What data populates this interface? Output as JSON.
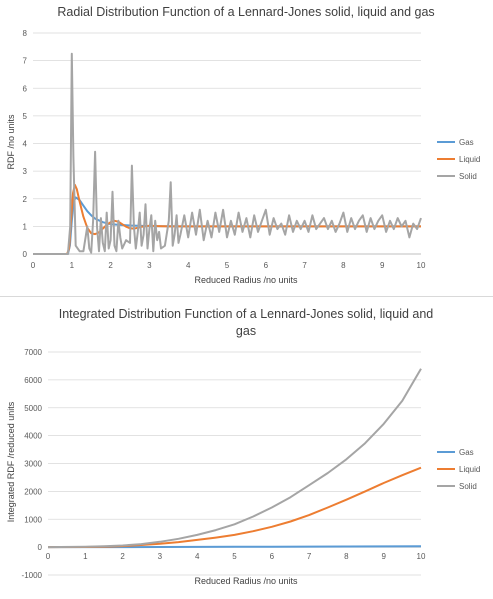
{
  "chart_data": [
    {
      "type": "line",
      "title": "Radial Distribution Function of a Lennard-Jones solid, liquid and gas",
      "xlabel": "Reduced Radius /no units",
      "ylabel": "RDF /no units",
      "xlim": [
        0,
        10
      ],
      "ylim": [
        0,
        8
      ],
      "xticks": [
        0,
        1,
        2,
        3,
        4,
        5,
        6,
        7,
        8,
        9,
        10
      ],
      "yticks": [
        0,
        1,
        2,
        3,
        4,
        5,
        6,
        7,
        8
      ],
      "grid": "horizontal",
      "legend_position": "right",
      "series": [
        {
          "name": "Gas",
          "color": "#5b9bd5",
          "x": [
            0,
            0.9,
            0.95,
            1.0,
            1.05,
            1.1,
            1.2,
            1.3,
            1.4,
            1.5,
            1.6,
            1.8,
            2.0,
            2.5,
            3.0,
            4.0,
            5.0,
            6.0,
            7.0,
            8.0,
            9.0,
            10.0
          ],
          "y": [
            0,
            0,
            0.3,
            1.2,
            1.9,
            2.05,
            1.95,
            1.75,
            1.55,
            1.4,
            1.28,
            1.15,
            1.08,
            1.03,
            1.01,
            1.0,
            1.0,
            1.0,
            1.0,
            1.0,
            1.0,
            1.0
          ]
        },
        {
          "name": "Liquid",
          "color": "#ed7d31",
          "x": [
            0,
            0.88,
            0.93,
            0.98,
            1.03,
            1.08,
            1.13,
            1.2,
            1.3,
            1.4,
            1.5,
            1.6,
            1.7,
            1.8,
            1.9,
            2.0,
            2.1,
            2.2,
            2.3,
            2.4,
            2.5,
            2.6,
            2.7,
            2.8,
            3.0,
            3.2,
            3.5,
            4.0,
            5.0,
            6.0,
            7.0,
            8.0,
            9.0,
            10.0
          ],
          "y": [
            0,
            0,
            0.2,
            1.2,
            2.2,
            2.5,
            2.35,
            1.9,
            1.35,
            0.95,
            0.75,
            0.72,
            0.78,
            0.92,
            1.05,
            1.15,
            1.2,
            1.17,
            1.08,
            0.99,
            0.93,
            0.92,
            0.95,
            0.99,
            1.02,
            1.01,
            1.0,
            1.0,
            1.0,
            1.0,
            1.0,
            1.0,
            1.0,
            1.0
          ]
        },
        {
          "name": "Solid",
          "color": "#a5a5a5",
          "x": [
            0,
            0.9,
            0.96,
            1.0,
            1.04,
            1.1,
            1.2,
            1.3,
            1.4,
            1.45,
            1.5,
            1.55,
            1.6,
            1.65,
            1.7,
            1.75,
            1.8,
            1.85,
            1.9,
            1.95,
            2.0,
            2.05,
            2.1,
            2.15,
            2.2,
            2.25,
            2.3,
            2.4,
            2.5,
            2.55,
            2.6,
            2.65,
            2.7,
            2.75,
            2.8,
            2.85,
            2.9,
            2.95,
            3.0,
            3.05,
            3.1,
            3.15,
            3.2,
            3.25,
            3.3,
            3.4,
            3.5,
            3.55,
            3.6,
            3.65,
            3.7,
            3.75,
            3.8,
            3.9,
            4.0,
            4.1,
            4.2,
            4.3,
            4.4,
            4.5,
            4.6,
            4.7,
            4.8,
            4.9,
            5.0,
            5.1,
            5.2,
            5.3,
            5.4,
            5.5,
            5.6,
            5.7,
            5.8,
            5.9,
            6.0,
            6.1,
            6.2,
            6.3,
            6.4,
            6.5,
            6.6,
            6.7,
            6.8,
            6.9,
            7.0,
            7.1,
            7.2,
            7.3,
            7.4,
            7.5,
            7.6,
            7.7,
            7.8,
            7.9,
            8.0,
            8.1,
            8.2,
            8.3,
            8.4,
            8.5,
            8.6,
            8.7,
            8.8,
            8.9,
            9.0,
            9.1,
            9.2,
            9.3,
            9.4,
            9.5,
            9.6,
            9.7,
            9.8,
            9.9,
            10.0
          ],
          "y": [
            0,
            0,
            1.0,
            7.25,
            3.5,
            0.3,
            0.1,
            0.1,
            1.0,
            0.2,
            0.05,
            1.2,
            3.7,
            1.0,
            0.1,
            1.3,
            0.4,
            0.1,
            1.5,
            0.2,
            0.5,
            2.25,
            0.3,
            0.1,
            1.2,
            0.6,
            0.2,
            0.5,
            0.4,
            3.2,
            1.0,
            0.2,
            0.8,
            1.5,
            0.3,
            0.7,
            1.8,
            0.2,
            0.9,
            1.4,
            0.1,
            1.2,
            0.5,
            0.8,
            0.2,
            0.3,
            1.2,
            2.6,
            0.3,
            0.7,
            1.4,
            0.4,
            0.7,
            1.4,
            0.6,
            1.5,
            0.7,
            1.6,
            0.5,
            1.2,
            0.6,
            1.5,
            0.8,
            1.6,
            0.6,
            1.2,
            0.7,
            1.5,
            0.8,
            1.3,
            0.6,
            1.4,
            0.8,
            1.2,
            1.6,
            0.7,
            1.3,
            0.9,
            1.1,
            0.7,
            1.4,
            0.8,
            1.2,
            0.9,
            1.2,
            0.8,
            1.4,
            0.9,
            1.1,
            1.3,
            0.9,
            1.2,
            0.8,
            1.1,
            1.5,
            0.8,
            1.3,
            0.9,
            1.2,
            1.4,
            0.8,
            1.3,
            0.9,
            1.2,
            1.4,
            0.8,
            1.2,
            0.9,
            1.3,
            1.0,
            1.2,
            0.6,
            1.1,
            0.9,
            1.3
          ]
        }
      ]
    },
    {
      "type": "line",
      "title": "Integrated Distribution Function of a Lennard-Jones solid, liquid and gas",
      "xlabel": "Reduced Radius /no units",
      "ylabel": "Integrated RDF /reduced units",
      "xlim": [
        0,
        10
      ],
      "ylim": [
        -1000,
        7000
      ],
      "xticks": [
        0,
        1,
        2,
        3,
        4,
        5,
        6,
        7,
        8,
        9,
        10
      ],
      "yticks": [
        -1000,
        0,
        1000,
        2000,
        3000,
        4000,
        5000,
        6000,
        7000
      ],
      "grid": "horizontal",
      "legend_position": "right",
      "series": [
        {
          "name": "Gas",
          "color": "#5b9bd5",
          "x": [
            0,
            1,
            2,
            3,
            4,
            5,
            6,
            7,
            8,
            9,
            10
          ],
          "y": [
            0,
            0,
            2,
            4,
            7,
            10,
            14,
            18,
            22,
            27,
            30
          ]
        },
        {
          "name": "Liquid",
          "color": "#ed7d31",
          "x": [
            0,
            1,
            1.5,
            2,
            2.5,
            3,
            3.5,
            4,
            4.5,
            5,
            5.5,
            6,
            6.5,
            7,
            7.5,
            8,
            8.5,
            9,
            9.5,
            10
          ],
          "y": [
            0,
            4,
            15,
            38,
            75,
            120,
            180,
            260,
            340,
            440,
            570,
            730,
            920,
            1150,
            1420,
            1700,
            2000,
            2300,
            2580,
            2850
          ]
        },
        {
          "name": "Solid",
          "color": "#a5a5a5",
          "x": [
            0,
            1,
            1.5,
            2,
            2.5,
            3,
            3.5,
            4,
            4.5,
            5,
            5.5,
            6,
            6.5,
            7,
            7.5,
            8,
            8.5,
            9,
            9.5,
            10
          ],
          "y": [
            0,
            10,
            30,
            60,
            110,
            190,
            300,
            440,
            610,
            820,
            1100,
            1420,
            1790,
            2220,
            2660,
            3150,
            3730,
            4420,
            5250,
            6400
          ]
        }
      ]
    }
  ]
}
